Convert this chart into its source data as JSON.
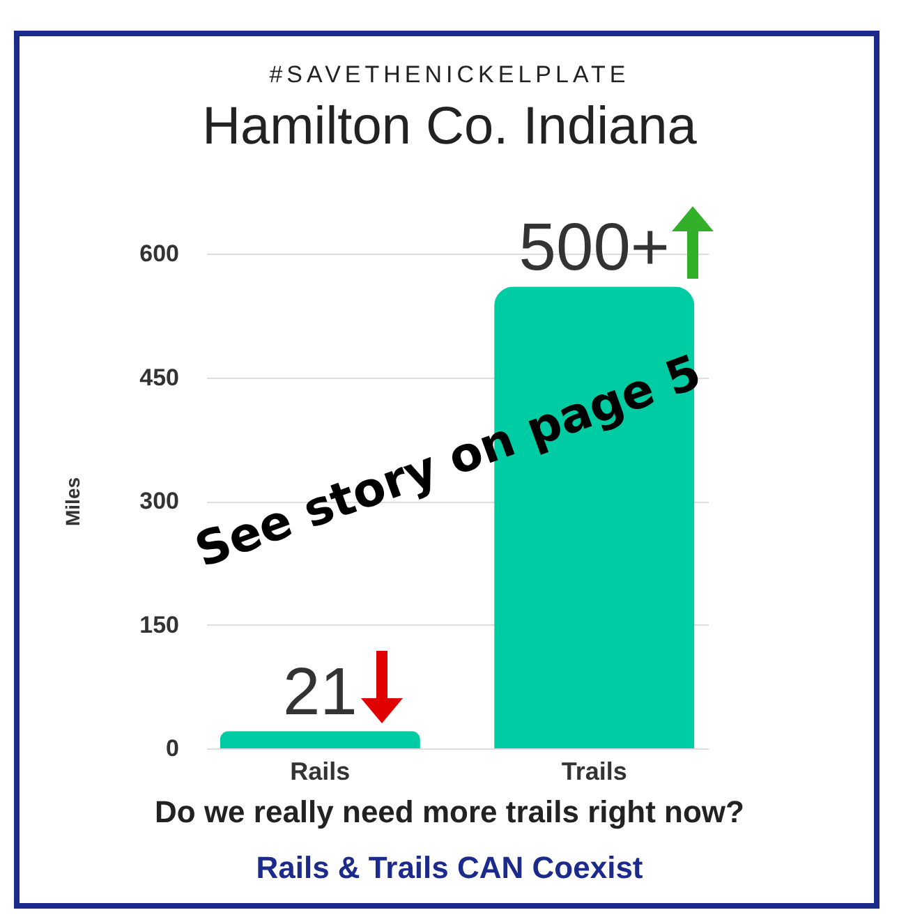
{
  "chart_data": {
    "type": "bar",
    "title": "Hamilton Co. Indiana",
    "ylabel": "Miles",
    "categories": [
      "Rails",
      "Trails"
    ],
    "values": [
      21,
      560
    ],
    "value_labels": [
      "21",
      "500+"
    ],
    "color": "#00cca3",
    "ylim": [
      0,
      600
    ],
    "yticks": [
      0,
      150,
      300,
      450,
      600
    ],
    "grid": "y",
    "annotations": [
      "#SAVETHENICKELPLATE",
      "See story on page 5",
      "Do we really need more trails right now?",
      "Rails & Trails CAN Coexist"
    ]
  }
}
